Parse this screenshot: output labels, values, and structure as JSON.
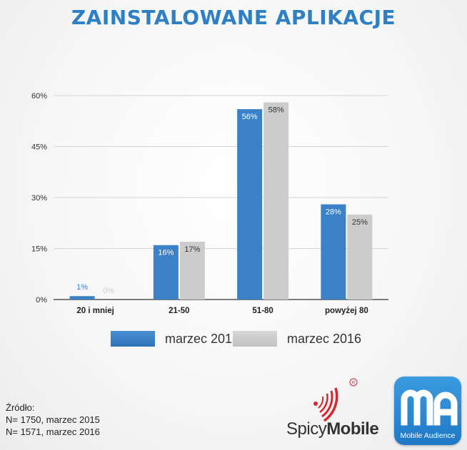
{
  "title": "ZAINSTALOWANE APLIKACJE",
  "chart_data": {
    "type": "bar",
    "categories": [
      "20 i mniej",
      "21-50",
      "51-80",
      "powyżej 80"
    ],
    "series": [
      {
        "name": "marzec 2015",
        "color": "#3a81c8",
        "values": [
          1,
          16,
          56,
          28
        ],
        "labels": [
          "1%",
          "16%",
          "56%",
          "28%"
        ]
      },
      {
        "name": "marzec 2016",
        "color": "#cccccc",
        "values": [
          0,
          17,
          58,
          25
        ],
        "labels": [
          "0%",
          "17%",
          "58%",
          "25%"
        ]
      }
    ],
    "yticks": [
      "0%",
      "15%",
      "30%",
      "45%",
      "60%"
    ],
    "ylim": [
      0,
      60
    ],
    "grid": true,
    "legend_position": "bottom"
  },
  "legend": [
    {
      "label": "marzec 2015",
      "color": "#3a81c8"
    },
    {
      "label": "marzec 2016",
      "color": "#cccccc"
    }
  ],
  "source": {
    "heading": "Źródło:",
    "lines": [
      "N= 1750, marzec 2015",
      "N= 1571, marzec 2016"
    ]
  },
  "logos": {
    "spicy_part1": "Spicy",
    "spicy_part2": "Mobile",
    "ma_mark": "ma",
    "ma_caption": "Mobile Audience"
  }
}
